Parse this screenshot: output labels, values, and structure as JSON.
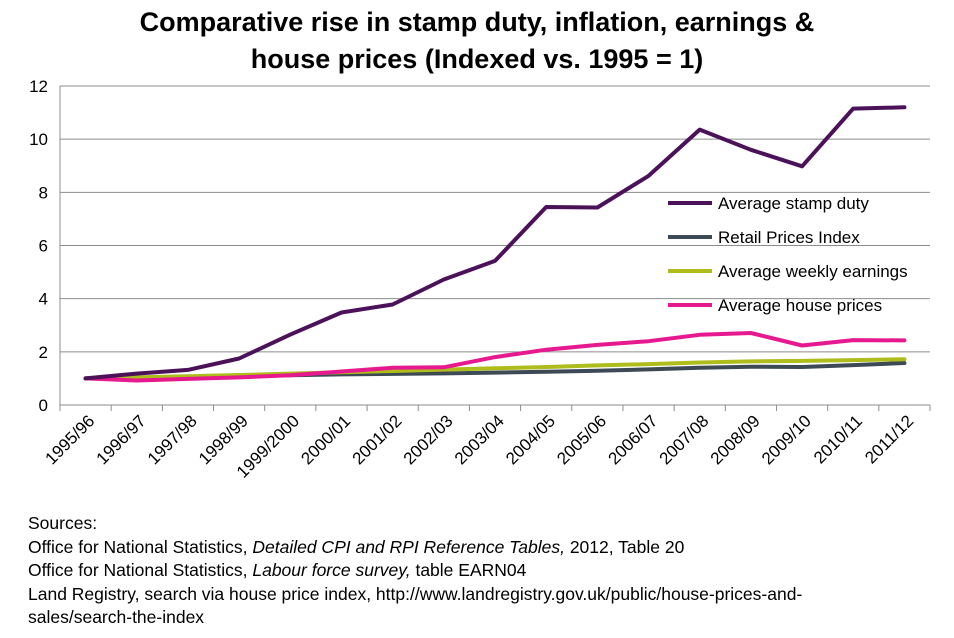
{
  "chart_data": {
    "type": "line",
    "title_lines": [
      "Comparative rise in stamp duty, inflation, earnings &",
      "house prices (Indexed vs. 1995 = 1)"
    ],
    "categories": [
      "1995/96",
      "1996/97",
      "1997/98",
      "1998/99",
      "1999/2000",
      "2000/01",
      "2001/02",
      "2002/03",
      "2003/04",
      "2004/05",
      "2005/06",
      "2006/07",
      "2007/08",
      "2008/09",
      "2009/10",
      "2010/11",
      "2011/12"
    ],
    "ylim": [
      0,
      12
    ],
    "yticks": [
      "0",
      "2",
      "4",
      "6",
      "8",
      "10",
      "12"
    ],
    "grid": true,
    "legend_position": "right",
    "series": [
      {
        "name": "Average stamp duty",
        "color": "#4b1259",
        "values": [
          1.0,
          1.18,
          1.32,
          1.75,
          2.65,
          3.48,
          3.78,
          4.72,
          5.42,
          7.45,
          7.43,
          8.62,
          10.36,
          9.6,
          8.98,
          11.15,
          11.2
        ]
      },
      {
        "name": "Retail Prices Index",
        "color": "#3d4a55",
        "values": [
          1.0,
          1.03,
          1.06,
          1.1,
          1.12,
          1.15,
          1.17,
          1.19,
          1.22,
          1.25,
          1.29,
          1.34,
          1.4,
          1.44,
          1.43,
          1.5,
          1.58
        ]
      },
      {
        "name": "Average weekly earnings",
        "color": "#aebd1b",
        "values": [
          1.0,
          1.04,
          1.08,
          1.13,
          1.18,
          1.23,
          1.28,
          1.33,
          1.38,
          1.43,
          1.49,
          1.54,
          1.6,
          1.64,
          1.66,
          1.69,
          1.72
        ]
      },
      {
        "name": "Average house prices",
        "color": "#e6198f",
        "values": [
          1.0,
          0.92,
          0.98,
          1.04,
          1.12,
          1.26,
          1.4,
          1.42,
          1.8,
          2.08,
          2.26,
          2.4,
          2.64,
          2.71,
          2.24,
          2.44,
          2.43
        ]
      }
    ]
  },
  "sources": {
    "heading": "Sources:",
    "line1_a": "Office for National Statistics, ",
    "line1_b": "Detailed CPI and RPI Reference Tables,",
    "line1_c": " 2012, Table 20",
    "line2_a": "Office for National Statistics, ",
    "line2_b": "Labour force survey,",
    "line2_c": " table EARN04",
    "line3": "Land Registry, search via house price index, http://www.landregistry.gov.uk/public/house-prices-and-",
    "line4": "sales/search-the-index"
  }
}
